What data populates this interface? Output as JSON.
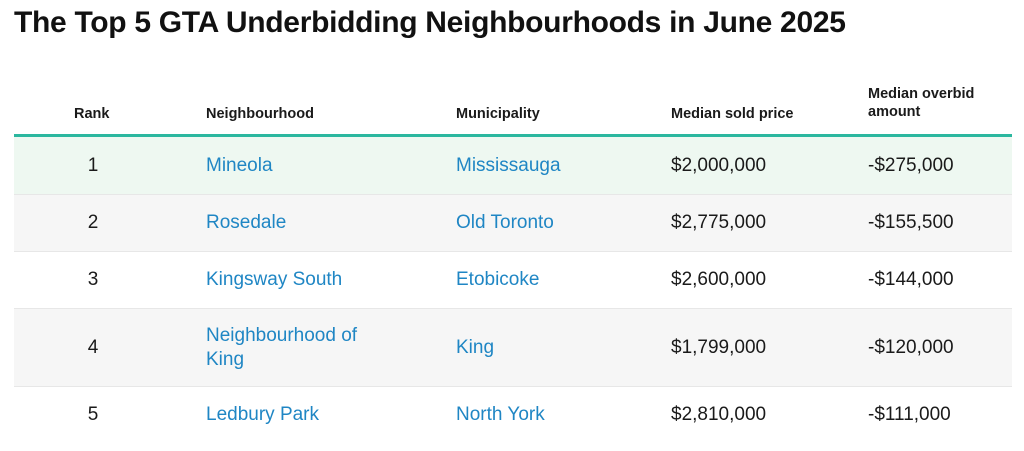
{
  "title": "The Top 5 GTA Underbidding Neighbourhoods in June 2025",
  "colors": {
    "accent_rule": "#2bb79f",
    "link": "#1f86c4",
    "highlight_row": "#eef8f1",
    "stripe_row": "#f6f6f6"
  },
  "columns": {
    "rank": "Rank",
    "neighbourhood": "Neighbourhood",
    "municipality": "Municipality",
    "median_sold_price": "Median sold price",
    "median_overbid_amount": "Median overbid amount"
  },
  "rows": [
    {
      "rank": "1",
      "neighbourhood": "Mineola",
      "municipality": "Mississauga",
      "median_sold_price": "$2,000,000",
      "median_overbid_amount": "-$275,000"
    },
    {
      "rank": "2",
      "neighbourhood": "Rosedale",
      "municipality": "Old Toronto",
      "median_sold_price": "$2,775,000",
      "median_overbid_amount": "-$155,500"
    },
    {
      "rank": "3",
      "neighbourhood": "Kingsway South",
      "municipality": "Etobicoke",
      "median_sold_price": "$2,600,000",
      "median_overbid_amount": "-$144,000"
    },
    {
      "rank": "4",
      "neighbourhood": "Neighbourhood of King",
      "municipality": "King",
      "median_sold_price": "$1,799,000",
      "median_overbid_amount": "-$120,000"
    },
    {
      "rank": "5",
      "neighbourhood": "Ledbury Park",
      "municipality": "North York",
      "median_sold_price": "$2,810,000",
      "median_overbid_amount": "-$111,000"
    }
  ]
}
